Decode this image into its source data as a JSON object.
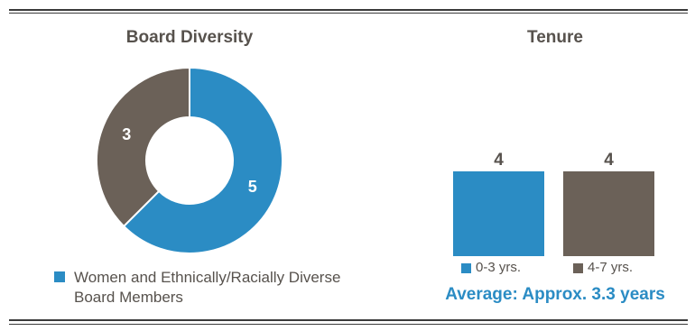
{
  "colors": {
    "primary": "#2b8cc4",
    "secondary": "#6b6158",
    "text": "#57524d"
  },
  "chart_data": [
    {
      "type": "pie",
      "title": "Board Diversity",
      "series": [
        {
          "name": "Women and Ethnically/Racially Diverse Board Members",
          "values": [
            5
          ]
        }
      ],
      "slices": [
        {
          "label": "5",
          "value": 5,
          "color": "#2b8cc4"
        },
        {
          "label": "3",
          "value": 3,
          "color": "#6b6158"
        }
      ],
      "legend": [
        "Women and Ethnically/Racially Diverse Board Members"
      ],
      "legend_position": "bottom",
      "donut": true
    },
    {
      "type": "bar",
      "title": "Tenure",
      "categories": [
        "0-3 yrs.",
        "4-7 yrs."
      ],
      "values": [
        4,
        4
      ],
      "colors": [
        "#2b8cc4",
        "#6b6158"
      ],
      "legend_position": "bottom",
      "note": "Average: Approx. 3.3 years"
    }
  ]
}
